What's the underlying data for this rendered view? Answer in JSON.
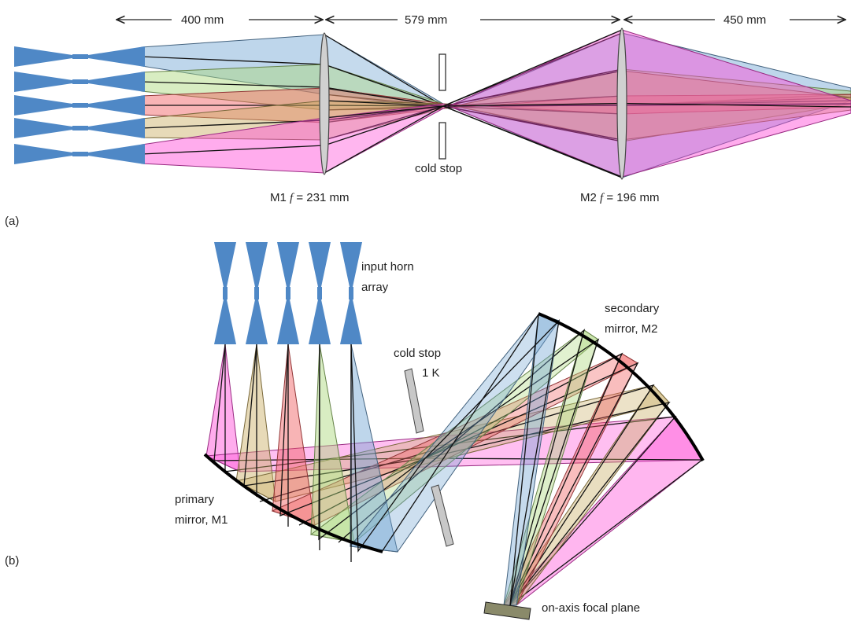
{
  "colors": {
    "blue": "#6fa3d2",
    "green": "#a9d878",
    "red": "#f0595a",
    "olive": "#c9ad61",
    "magenta": "#ff48d8",
    "horn": "#4f88c6",
    "lens": "#d0d0d0",
    "stop": "#c8c8c8"
  },
  "icons": {
    "horn": "feed-horn-icon",
    "lens": "biconvex-lens-icon",
    "stop": "aperture-stop-icon"
  },
  "panel_a": {
    "label": "(a)",
    "dim_m1": "400 mm",
    "dim_mid": "579 mm",
    "dim_m2": "450 mm",
    "m1_label": "M1 ",
    "m1_f": "f",
    "m1_value": " = 231 mm",
    "m2_label": "M2 ",
    "m2_f": "f",
    "m2_value": " = 196 mm",
    "cold_stop": "cold stop"
  },
  "panel_b": {
    "label": "(b)",
    "horn_line1": "input horn",
    "horn_line2": "array",
    "stop_line1": "cold stop",
    "stop_line2": "1 K",
    "m2_line1": "secondary",
    "m2_line2": "mirror, M2",
    "m1_line1": "primary",
    "m1_line2": "mirror, M1",
    "focal": "on-axis focal plane"
  }
}
